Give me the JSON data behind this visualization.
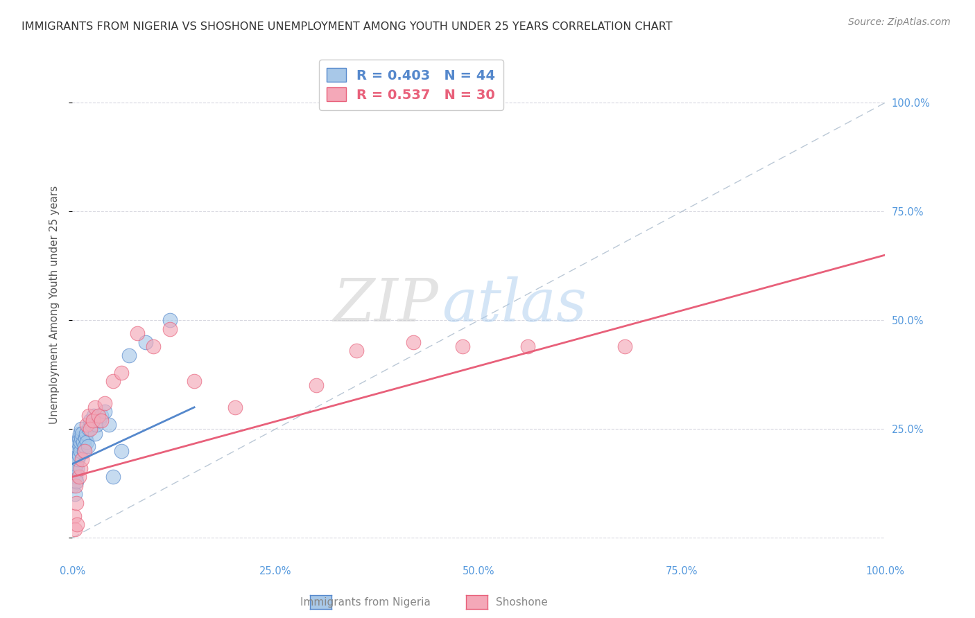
{
  "title": "IMMIGRANTS FROM NIGERIA VS SHOSHONE UNEMPLOYMENT AMONG YOUTH UNDER 25 YEARS CORRELATION CHART",
  "source": "Source: ZipAtlas.com",
  "ylabel": "Unemployment Among Youth under 25 years",
  "legend_labels": [
    "Immigrants from Nigeria",
    "Shoshone"
  ],
  "r_nigeria": 0.403,
  "n_nigeria": 44,
  "r_shoshone": 0.537,
  "n_shoshone": 30,
  "xlim": [
    0.0,
    1.0
  ],
  "ylim": [
    -0.05,
    1.12
  ],
  "xticks": [
    0.0,
    0.25,
    0.5,
    0.75,
    1.0
  ],
  "xtick_labels": [
    "0.0%",
    "25.0%",
    "50.0%",
    "75.0%",
    "100.0%"
  ],
  "right_yticks": [
    0.25,
    0.5,
    0.75,
    1.0
  ],
  "right_ytick_labels": [
    "25.0%",
    "50.0%",
    "75.0%",
    "100.0%"
  ],
  "color_nigeria": "#a8c8e8",
  "color_shoshone": "#f4a8b8",
  "line_color_nigeria": "#5588cc",
  "line_color_shoshone": "#e8607a",
  "ref_line_color": "#aabbcc",
  "nigeria_x": [
    0.001,
    0.002,
    0.002,
    0.003,
    0.003,
    0.004,
    0.004,
    0.005,
    0.005,
    0.006,
    0.006,
    0.007,
    0.007,
    0.008,
    0.008,
    0.009,
    0.009,
    0.01,
    0.01,
    0.011,
    0.011,
    0.012,
    0.013,
    0.014,
    0.015,
    0.016,
    0.017,
    0.018,
    0.019,
    0.02,
    0.022,
    0.024,
    0.026,
    0.028,
    0.03,
    0.033,
    0.036,
    0.04,
    0.045,
    0.05,
    0.06,
    0.07,
    0.09,
    0.12
  ],
  "nigeria_y": [
    0.12,
    0.15,
    0.18,
    0.1,
    0.16,
    0.14,
    0.2,
    0.13,
    0.17,
    0.16,
    0.21,
    0.18,
    0.22,
    0.19,
    0.23,
    0.21,
    0.24,
    0.2,
    0.22,
    0.23,
    0.25,
    0.24,
    0.22,
    0.2,
    0.21,
    0.23,
    0.24,
    0.22,
    0.21,
    0.25,
    0.27,
    0.26,
    0.28,
    0.24,
    0.26,
    0.27,
    0.28,
    0.29,
    0.26,
    0.14,
    0.2,
    0.42,
    0.45,
    0.5
  ],
  "nigeria_trend_x": [
    0.0,
    0.15
  ],
  "nigeria_trend_y": [
    0.17,
    0.3
  ],
  "shoshone_x": [
    0.002,
    0.003,
    0.004,
    0.005,
    0.006,
    0.008,
    0.01,
    0.012,
    0.015,
    0.018,
    0.02,
    0.022,
    0.025,
    0.028,
    0.032,
    0.036,
    0.04,
    0.05,
    0.06,
    0.08,
    0.1,
    0.12,
    0.15,
    0.2,
    0.3,
    0.42,
    0.56,
    0.68,
    0.35,
    0.48
  ],
  "shoshone_y": [
    0.05,
    0.02,
    0.12,
    0.08,
    0.03,
    0.14,
    0.16,
    0.18,
    0.2,
    0.26,
    0.28,
    0.25,
    0.27,
    0.3,
    0.28,
    0.27,
    0.31,
    0.36,
    0.38,
    0.47,
    0.44,
    0.48,
    0.36,
    0.3,
    0.35,
    0.45,
    0.44,
    0.44,
    0.43,
    0.44
  ],
  "shoshone_trend_x": [
    0.0,
    1.0
  ],
  "shoshone_trend_y": [
    0.14,
    0.65
  ],
  "watermark_zip": "ZIP",
  "watermark_atlas": "atlas",
  "background_color": "#ffffff",
  "grid_color": "#d8d8e0",
  "title_fontsize": 11.5,
  "label_fontsize": 11,
  "tick_fontsize": 10.5,
  "legend_fontsize": 14,
  "source_fontsize": 10
}
